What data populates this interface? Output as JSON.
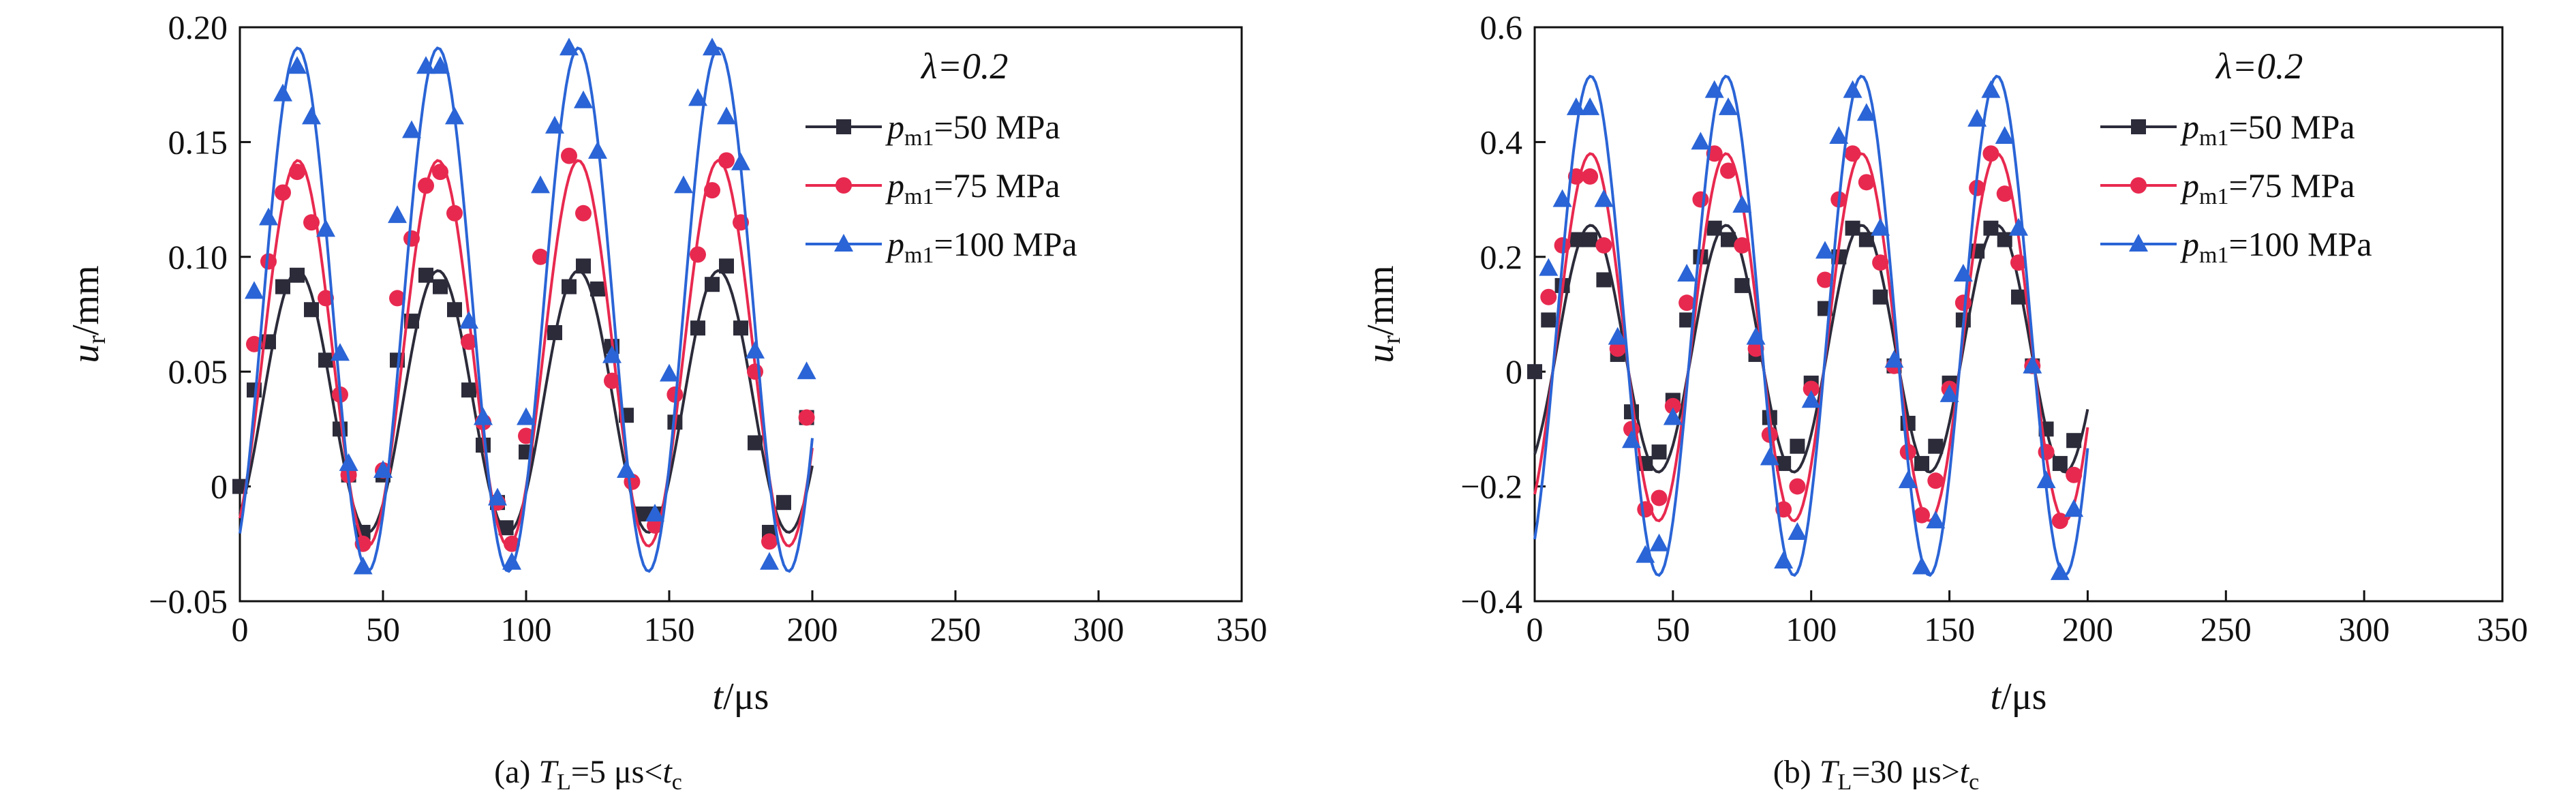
{
  "figure": {
    "panels": [
      {
        "caption": {
          "prefix": "(a) ",
          "sym": "T",
          "sub": "L",
          "rest": "=5 μs<",
          "sym2": "t",
          "sub2": "c"
        },
        "ylabel": {
          "sym": "u",
          "sub": "r",
          "unit": "/mm"
        },
        "xlabel": {
          "sym": "t",
          "unit": "/μs"
        },
        "legend_title": "λ=0.2"
      },
      {
        "caption": {
          "prefix": "(b) ",
          "sym": "T",
          "sub": "L",
          "rest": "=30 μs>",
          "sym2": "t",
          "sub2": "c"
        },
        "ylabel": {
          "sym": "u",
          "sub": "r",
          "unit": "/mm"
        },
        "xlabel": {
          "sym": "t",
          "unit": "/μs"
        },
        "legend_title": "λ=0.2"
      }
    ],
    "legend": [
      {
        "sym": "p",
        "sub": "m1",
        "rest": "=50 MPa"
      },
      {
        "sym": "p",
        "sub": "m1",
        "rest": "=75 MPa"
      },
      {
        "sym": "p",
        "sub": "m1",
        "rest": "=100 MPa"
      }
    ]
  },
  "chart_data": [
    {
      "type": "line",
      "title": "",
      "caption": "(a) TL=5 μs<tc",
      "xlabel": "t/μs",
      "ylabel": "ur/mm",
      "xlim": [
        0,
        350
      ],
      "ylim": [
        -0.05,
        0.2
      ],
      "xticks": [
        0,
        50,
        100,
        150,
        200,
        250,
        300,
        350
      ],
      "yticks": [
        -0.05,
        0,
        0.05,
        0.1,
        0.15,
        0.2
      ],
      "ytick_labels": [
        "−0.05",
        "0",
        "0.05",
        "0.10",
        "0.15",
        "0.20"
      ],
      "legend_title": "λ=0.2",
      "legend_position": "top-right",
      "grid": false,
      "series": [
        {
          "name": "pm1=50 MPa",
          "color": "#2b2b3a",
          "marker": "square",
          "amp": 0.057,
          "offset": 0.037,
          "period": 49,
          "t0": 8,
          "points": [
            [
              0,
              0
            ],
            [
              5,
              0.042
            ],
            [
              10,
              0.063
            ],
            [
              15,
              0.087
            ],
            [
              20,
              0.092
            ],
            [
              25,
              0.077
            ],
            [
              30,
              0.055
            ],
            [
              35,
              0.025
            ],
            [
              38,
              0.005
            ],
            [
              43,
              -0.02
            ],
            [
              50,
              0.005
            ],
            [
              55,
              0.055
            ],
            [
              60,
              0.072
            ],
            [
              65,
              0.092
            ],
            [
              70,
              0.087
            ],
            [
              75,
              0.077
            ],
            [
              80,
              0.042
            ],
            [
              85,
              0.018
            ],
            [
              90,
              -0.007
            ],
            [
              93,
              -0.018
            ],
            [
              100,
              0.015
            ],
            [
              110,
              0.067
            ],
            [
              115,
              0.087
            ],
            [
              120,
              0.096
            ],
            [
              125,
              0.086
            ],
            [
              130,
              0.061
            ],
            [
              135,
              0.031
            ],
            [
              140,
              -0.012
            ],
            [
              145,
              -0.012
            ],
            [
              152,
              0.028
            ],
            [
              160,
              0.069
            ],
            [
              165,
              0.088
            ],
            [
              170,
              0.096
            ],
            [
              175,
              0.069
            ],
            [
              180,
              0.019
            ],
            [
              185,
              -0.02
            ],
            [
              190,
              -0.007
            ],
            [
              198,
              0.03
            ]
          ]
        },
        {
          "name": "pm1=75 MPa",
          "color": "#e8294f",
          "marker": "circle",
          "amp": 0.084,
          "offset": 0.058,
          "period": 49,
          "t0": 8,
          "points": [
            [
              5,
              0.062
            ],
            [
              10,
              0.098
            ],
            [
              15,
              0.128
            ],
            [
              20,
              0.137
            ],
            [
              25,
              0.115
            ],
            [
              30,
              0.082
            ],
            [
              35,
              0.04
            ],
            [
              38,
              0.005
            ],
            [
              43,
              -0.025
            ],
            [
              50,
              0.007
            ],
            [
              55,
              0.082
            ],
            [
              60,
              0.108
            ],
            [
              65,
              0.131
            ],
            [
              70,
              0.137
            ],
            [
              75,
              0.119
            ],
            [
              80,
              0.063
            ],
            [
              85,
              0.028
            ],
            [
              90,
              -0.007
            ],
            [
              95,
              -0.025
            ],
            [
              100,
              0.022
            ],
            [
              105,
              0.1
            ],
            [
              115,
              0.144
            ],
            [
              120,
              0.119
            ],
            [
              130,
              0.046
            ],
            [
              137,
              0.002
            ],
            [
              145,
              -0.017
            ],
            [
              152,
              0.04
            ],
            [
              160,
              0.101
            ],
            [
              165,
              0.129
            ],
            [
              170,
              0.142
            ],
            [
              175,
              0.115
            ],
            [
              180,
              0.05
            ],
            [
              185,
              -0.024
            ],
            [
              198,
              0.03
            ]
          ]
        },
        {
          "name": "pm1=100 MPa",
          "color": "#2a64d6",
          "marker": "triangle",
          "amp": 0.114,
          "offset": 0.077,
          "period": 49,
          "t0": 8,
          "points": [
            [
              5,
              0.085
            ],
            [
              10,
              0.117
            ],
            [
              15,
              0.171
            ],
            [
              20,
              0.183
            ],
            [
              25,
              0.161
            ],
            [
              30,
              0.112
            ],
            [
              35,
              0.058
            ],
            [
              38,
              0.01
            ],
            [
              43,
              -0.035
            ],
            [
              50,
              0.007
            ],
            [
              55,
              0.118
            ],
            [
              60,
              0.155
            ],
            [
              65,
              0.183
            ],
            [
              70,
              0.183
            ],
            [
              75,
              0.161
            ],
            [
              80,
              0.072
            ],
            [
              85,
              0.03
            ],
            [
              90,
              -0.005
            ],
            [
              95,
              -0.033
            ],
            [
              100,
              0.03
            ],
            [
              105,
              0.131
            ],
            [
              110,
              0.157
            ],
            [
              115,
              0.191
            ],
            [
              120,
              0.168
            ],
            [
              125,
              0.146
            ],
            [
              130,
              0.057
            ],
            [
              135,
              0.007
            ],
            [
              145,
              -0.012
            ],
            [
              150,
              0.049
            ],
            [
              155,
              0.131
            ],
            [
              160,
              0.169
            ],
            [
              165,
              0.191
            ],
            [
              170,
              0.161
            ],
            [
              175,
              0.141
            ],
            [
              180,
              0.059
            ],
            [
              185,
              -0.033
            ],
            [
              198,
              0.05
            ]
          ]
        }
      ]
    },
    {
      "type": "line",
      "title": "",
      "caption": "(b) TL=30 μs>tc",
      "xlabel": "t/μs",
      "ylabel": "ur/mm",
      "xlim": [
        0,
        350
      ],
      "ylim": [
        -0.4,
        0.6
      ],
      "xticks": [
        0,
        50,
        100,
        150,
        200,
        250,
        300,
        350
      ],
      "yticks": [
        -0.4,
        -0.2,
        0,
        0.2,
        0.4,
        0.6
      ],
      "ytick_labels": [
        "−0.4",
        "−0.2",
        "0",
        "0.2",
        "0.4",
        "0.6"
      ],
      "legend_title": "λ=0.2",
      "legend_position": "top-right",
      "grid": false,
      "series": [
        {
          "name": "pm1=50 MPa",
          "color": "#2b2b3a",
          "marker": "square",
          "amp": 0.215,
          "offset": 0.04,
          "period": 49,
          "t0": 8,
          "points": [
            [
              0,
              0
            ],
            [
              5,
              0.09
            ],
            [
              10,
              0.15
            ],
            [
              15,
              0.23
            ],
            [
              20,
              0.23
            ],
            [
              25,
              0.16
            ],
            [
              30,
              0.03
            ],
            [
              35,
              -0.07
            ],
            [
              40,
              -0.16
            ],
            [
              45,
              -0.14
            ],
            [
              50,
              -0.05
            ],
            [
              55,
              0.09
            ],
            [
              60,
              0.2
            ],
            [
              65,
              0.25
            ],
            [
              70,
              0.23
            ],
            [
              75,
              0.15
            ],
            [
              80,
              0.03
            ],
            [
              85,
              -0.08
            ],
            [
              90,
              -0.16
            ],
            [
              95,
              -0.13
            ],
            [
              100,
              -0.02
            ],
            [
              105,
              0.11
            ],
            [
              110,
              0.2
            ],
            [
              115,
              0.25
            ],
            [
              120,
              0.23
            ],
            [
              125,
              0.13
            ],
            [
              130,
              0.01
            ],
            [
              135,
              -0.09
            ],
            [
              140,
              -0.16
            ],
            [
              145,
              -0.13
            ],
            [
              150,
              -0.02
            ],
            [
              155,
              0.09
            ],
            [
              160,
              0.21
            ],
            [
              165,
              0.25
            ],
            [
              170,
              0.23
            ],
            [
              175,
              0.13
            ],
            [
              180,
              0.01
            ],
            [
              185,
              -0.1
            ],
            [
              190,
              -0.16
            ],
            [
              195,
              -0.12
            ]
          ]
        },
        {
          "name": "pm1=75 MPa",
          "color": "#e8294f",
          "marker": "circle",
          "amp": 0.32,
          "offset": 0.06,
          "period": 49,
          "t0": 8,
          "points": [
            [
              5,
              0.13
            ],
            [
              10,
              0.22
            ],
            [
              15,
              0.34
            ],
            [
              20,
              0.34
            ],
            [
              25,
              0.22
            ],
            [
              30,
              0.04
            ],
            [
              35,
              -0.1
            ],
            [
              40,
              -0.24
            ],
            [
              45,
              -0.22
            ],
            [
              50,
              -0.06
            ],
            [
              55,
              0.12
            ],
            [
              60,
              0.3
            ],
            [
              65,
              0.38
            ],
            [
              70,
              0.35
            ],
            [
              75,
              0.22
            ],
            [
              80,
              0.04
            ],
            [
              85,
              -0.11
            ],
            [
              90,
              -0.24
            ],
            [
              95,
              -0.2
            ],
            [
              100,
              -0.03
            ],
            [
              105,
              0.16
            ],
            [
              110,
              0.3
            ],
            [
              115,
              0.38
            ],
            [
              120,
              0.33
            ],
            [
              125,
              0.19
            ],
            [
              130,
              0.01
            ],
            [
              135,
              -0.14
            ],
            [
              140,
              -0.25
            ],
            [
              145,
              -0.19
            ],
            [
              150,
              -0.03
            ],
            [
              155,
              0.12
            ],
            [
              160,
              0.32
            ],
            [
              165,
              0.38
            ],
            [
              170,
              0.31
            ],
            [
              175,
              0.19
            ],
            [
              180,
              0.01
            ],
            [
              185,
              -0.14
            ],
            [
              190,
              -0.26
            ],
            [
              195,
              -0.18
            ]
          ]
        },
        {
          "name": "pm1=100 MPa",
          "color": "#2a64d6",
          "marker": "triangle",
          "amp": 0.435,
          "offset": 0.08,
          "period": 49,
          "t0": 8,
          "points": [
            [
              5,
              0.18
            ],
            [
              10,
              0.3
            ],
            [
              15,
              0.46
            ],
            [
              20,
              0.46
            ],
            [
              25,
              0.3
            ],
            [
              30,
              0.06
            ],
            [
              35,
              -0.12
            ],
            [
              40,
              -0.32
            ],
            [
              45,
              -0.3
            ],
            [
              50,
              -0.08
            ],
            [
              55,
              0.17
            ],
            [
              60,
              0.4
            ],
            [
              65,
              0.49
            ],
            [
              70,
              0.46
            ],
            [
              75,
              0.29
            ],
            [
              80,
              0.06
            ],
            [
              85,
              -0.15
            ],
            [
              90,
              -0.33
            ],
            [
              95,
              -0.28
            ],
            [
              100,
              -0.05
            ],
            [
              105,
              0.21
            ],
            [
              110,
              0.41
            ],
            [
              115,
              0.49
            ],
            [
              120,
              0.45
            ],
            [
              125,
              0.25
            ],
            [
              130,
              0.02
            ],
            [
              135,
              -0.19
            ],
            [
              140,
              -0.34
            ],
            [
              145,
              -0.26
            ],
            [
              150,
              -0.04
            ],
            [
              155,
              0.17
            ],
            [
              160,
              0.44
            ],
            [
              165,
              0.49
            ],
            [
              170,
              0.41
            ],
            [
              175,
              0.25
            ],
            [
              180,
              0.01
            ],
            [
              185,
              -0.19
            ],
            [
              190,
              -0.35
            ],
            [
              195,
              -0.24
            ]
          ]
        }
      ]
    }
  ]
}
